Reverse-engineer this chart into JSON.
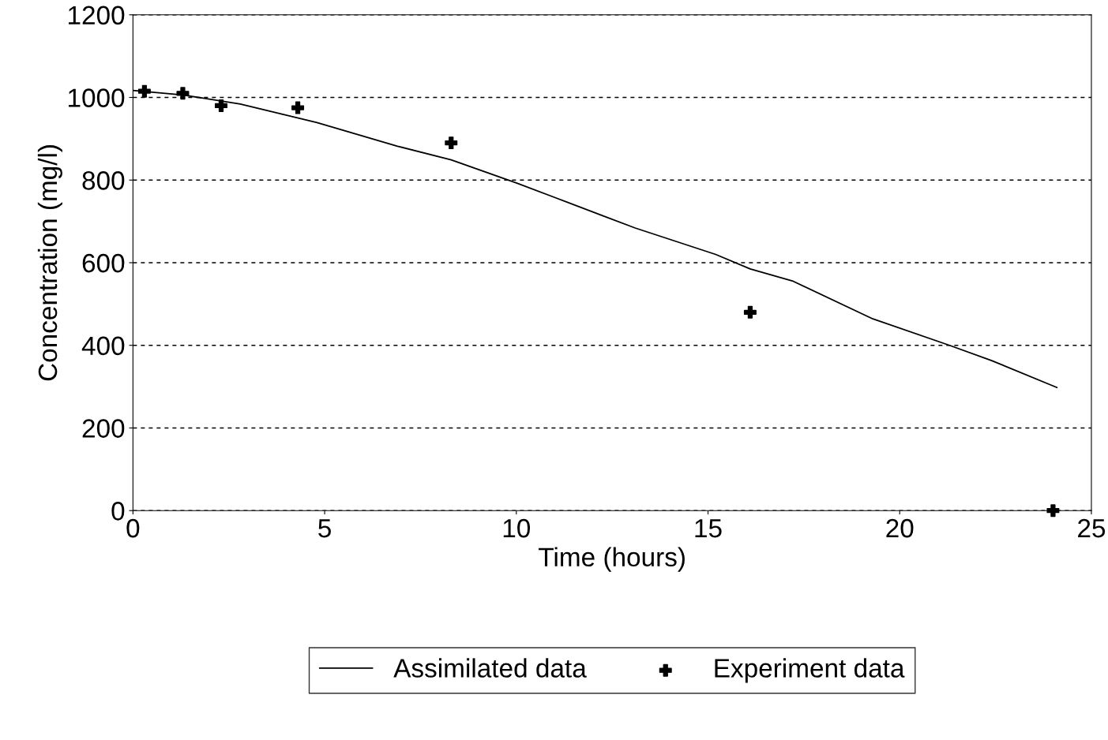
{
  "chart_data": {
    "type": "line",
    "xlabel": "Time (hours)",
    "ylabel": "Concentration (mg/l)",
    "xlim": [
      0,
      25
    ],
    "xticks": [
      0,
      5,
      10,
      15,
      20,
      25
    ],
    "ylim": [
      0,
      1200
    ],
    "yticks": [
      0,
      200,
      400,
      600,
      800,
      1000,
      1200
    ],
    "grid": "y",
    "legend": "bottom",
    "series": [
      {
        "name": "Assimilated data",
        "color": "#000000",
        "marker": "none",
        "line_style": "solid",
        "x": [
          0,
          1.3,
          2.8,
          4.8,
          6.9,
          8.3,
          10,
          11,
          13.1,
          15.2,
          16.1,
          17.2,
          19.3,
          21.3,
          22.4,
          24.1
        ],
        "values": [
          1017,
          1006,
          984,
          939,
          882,
          849,
          793,
          758,
          684,
          620,
          585,
          556,
          464,
          400,
          363,
          298
        ]
      },
      {
        "name": "Experiment data",
        "type": "scatter",
        "color": "#000000",
        "marker": "cross",
        "x": [
          0.3,
          1.3,
          2.3,
          4.3,
          8.3,
          16.1,
          24
        ],
        "values": [
          1015,
          1010,
          980,
          975,
          890,
          480,
          0
        ]
      }
    ]
  }
}
